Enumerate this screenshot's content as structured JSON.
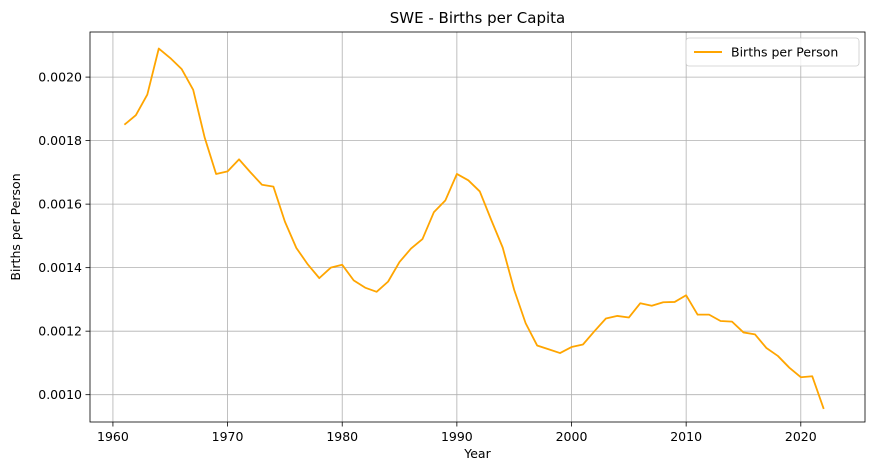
{
  "chart_data": {
    "type": "line",
    "title": "SWE - Births per Capita",
    "xlabel": "Year",
    "ylabel": "Births per Person",
    "xlim": [
      1958,
      2025.6
    ],
    "ylim": [
      0.000914,
      0.002142
    ],
    "xticks": [
      1960,
      1970,
      1980,
      1990,
      2000,
      2010,
      2020
    ],
    "yticks": [
      0.001,
      0.0012,
      0.0014,
      0.0016,
      0.0018,
      0.002
    ],
    "ytick_labels": [
      "0.0010",
      "0.0012",
      "0.0014",
      "0.0016",
      "0.0018",
      "0.0020"
    ],
    "grid": true,
    "legend_position": "top-right",
    "series": [
      {
        "name": "Births per Person",
        "color": "#ffa500",
        "x": [
          1961,
          1962,
          1963,
          1964,
          1965,
          1966,
          1967,
          1968,
          1969,
          1970,
          1971,
          1972,
          1973,
          1974,
          1975,
          1976,
          1977,
          1978,
          1979,
          1980,
          1981,
          1982,
          1983,
          1984,
          1985,
          1986,
          1987,
          1988,
          1989,
          1990,
          1991,
          1992,
          1993,
          1994,
          1995,
          1996,
          1997,
          1998,
          1999,
          2000,
          2001,
          2002,
          2003,
          2004,
          2005,
          2006,
          2007,
          2008,
          2009,
          2010,
          2011,
          2012,
          2013,
          2014,
          2015,
          2016,
          2017,
          2018,
          2019,
          2020,
          2021,
          2022
        ],
        "values": [
          0.00185,
          0.00188,
          0.001945,
          0.00209,
          0.00206,
          0.002025,
          0.00196,
          0.00181,
          0.001695,
          0.001703,
          0.001741,
          0.0017,
          0.001661,
          0.001655,
          0.001545,
          0.001462,
          0.00141,
          0.001367,
          0.0014,
          0.001409,
          0.00136,
          0.001337,
          0.001324,
          0.001356,
          0.001418,
          0.00146,
          0.00149,
          0.001575,
          0.001612,
          0.001695,
          0.001675,
          0.00164,
          0.00155,
          0.001463,
          0.00133,
          0.001225,
          0.001155,
          0.001143,
          0.001131,
          0.00115,
          0.001158,
          0.0012,
          0.00124,
          0.001248,
          0.001243,
          0.001288,
          0.00128,
          0.001291,
          0.001292,
          0.001313,
          0.001252,
          0.001252,
          0.001232,
          0.00123,
          0.001196,
          0.00119,
          0.001147,
          0.001122,
          0.001085,
          0.001055,
          0.001058,
          0.000955
        ]
      }
    ]
  }
}
